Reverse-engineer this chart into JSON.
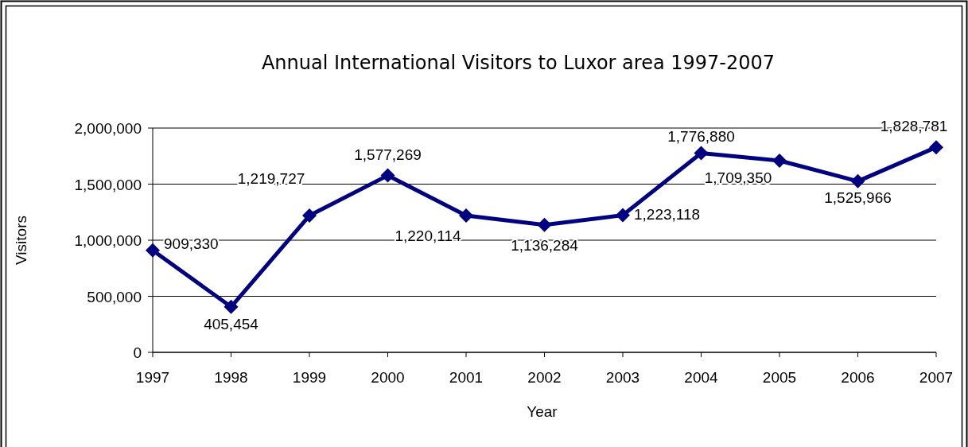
{
  "chart_data": {
    "type": "line",
    "title": "Annual International Visitors to Luxor area 1997-2007",
    "xlabel": "Year",
    "ylabel": "Visitors",
    "x": [
      1997,
      1998,
      1999,
      2000,
      2001,
      2002,
      2003,
      2004,
      2005,
      2006,
      2007
    ],
    "series": [
      {
        "color": "#000080",
        "values": [
          909330,
          405454,
          1219727,
          1577269,
          1220114,
          1136284,
          1223118,
          1776880,
          1709350,
          1525966,
          1828781
        ],
        "value_labels": [
          "909,330",
          "405,454",
          "1,219,727",
          "1,577,269",
          "1,220,114",
          "1,136,284",
          "1,223,118",
          "1,776,880",
          "1,709,350",
          "1,525,966",
          "1,828,781"
        ]
      }
    ],
    "xlim": [
      1997,
      2007
    ],
    "xticks": [
      1997,
      1998,
      1999,
      2000,
      2001,
      2002,
      2003,
      2004,
      2005,
      2006,
      2007
    ],
    "ylim": [
      0,
      2000000
    ],
    "yticks": [
      {
        "value": 0,
        "label": "0"
      },
      {
        "value": 500000,
        "label": "500,000"
      },
      {
        "value": 1000000,
        "label": "1,000,000"
      },
      {
        "value": 1500000,
        "label": "1,500,000"
      },
      {
        "value": 2000000,
        "label": "2,000,000"
      }
    ],
    "grid": "y",
    "marker": "diamond",
    "line_style": "solid"
  }
}
